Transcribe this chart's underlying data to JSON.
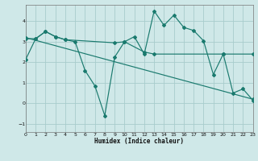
{
  "background_color": "#cfe8e8",
  "grid_color": "#a8cccc",
  "line_color": "#1a7a6e",
  "xlabel": "Humidex (Indice chaleur)",
  "xlim": [
    0,
    23
  ],
  "ylim": [
    -1.4,
    4.8
  ],
  "yticks": [
    -1,
    0,
    1,
    2,
    3,
    4
  ],
  "xticks": [
    0,
    1,
    2,
    3,
    4,
    5,
    6,
    7,
    8,
    9,
    10,
    11,
    12,
    13,
    14,
    15,
    16,
    17,
    18,
    19,
    20,
    21,
    22,
    23
  ],
  "line1_x": [
    0,
    1,
    2,
    3,
    4,
    5,
    6,
    7,
    8,
    9,
    10,
    11,
    12,
    13,
    14,
    15,
    16,
    17,
    18,
    19,
    20,
    21,
    22,
    23
  ],
  "line1_y": [
    2.15,
    3.15,
    3.5,
    3.25,
    3.1,
    3.0,
    1.6,
    0.85,
    -0.6,
    2.25,
    3.0,
    3.25,
    2.4,
    4.5,
    3.8,
    4.3,
    3.7,
    3.55,
    3.05,
    1.4,
    2.4,
    0.5,
    0.7,
    0.15
  ],
  "line2_x": [
    0,
    1,
    2,
    3,
    4,
    9,
    10,
    12,
    13,
    20,
    23
  ],
  "line2_y": [
    3.15,
    3.15,
    3.5,
    3.25,
    3.1,
    2.95,
    3.0,
    2.5,
    2.4,
    2.4,
    2.4
  ],
  "line3_x": [
    0,
    23
  ],
  "line3_y": [
    3.2,
    0.2
  ]
}
